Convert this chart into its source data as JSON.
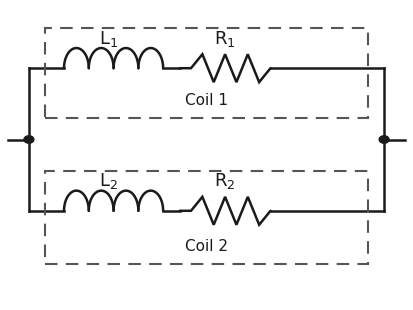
{
  "background_color": "#ffffff",
  "line_color": "#1a1a1a",
  "dash_color": "#555555",
  "coil1_label": "L$_1$",
  "coil2_label": "L$_2$",
  "res1_label": "R$_1$",
  "res2_label": "R$_2$",
  "coil1_text": "Coil 1",
  "coil2_text": "Coil 2",
  "figsize": [
    4.13,
    3.1
  ],
  "dpi": 100,
  "lw": 1.8,
  "label_fontsize": 13,
  "coil_text_fontsize": 11
}
